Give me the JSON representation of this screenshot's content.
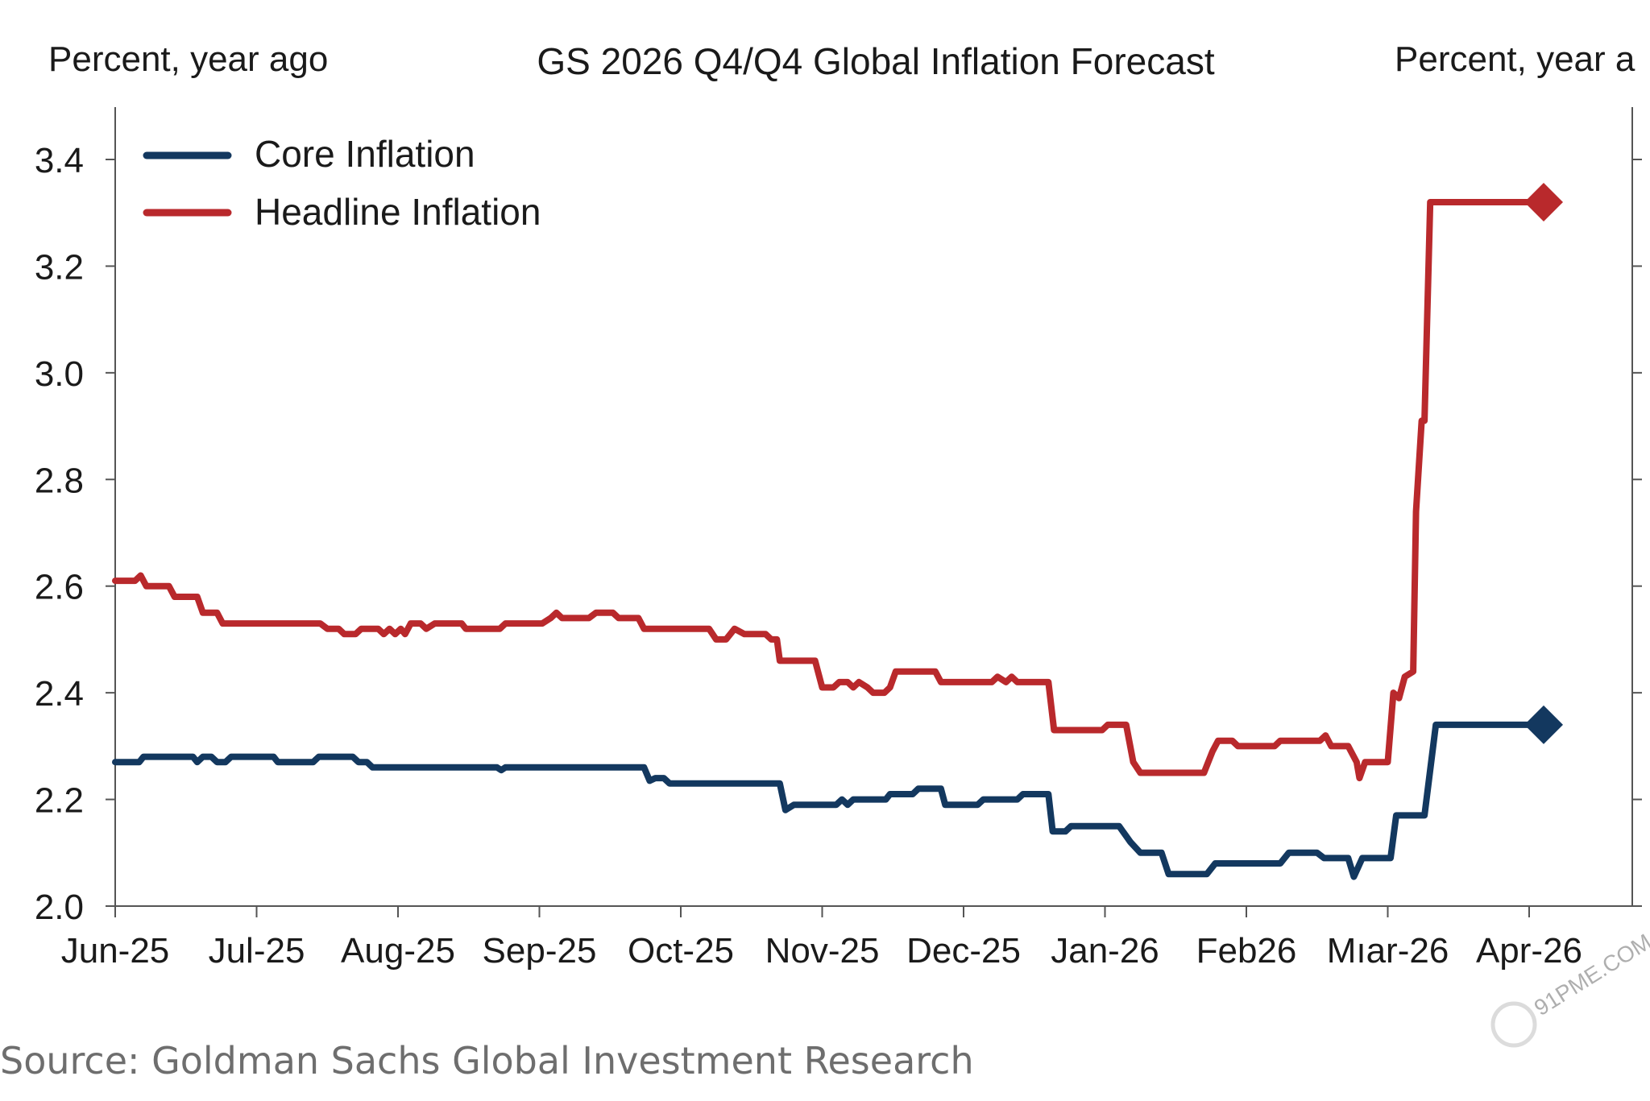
{
  "chart_data": {
    "type": "line",
    "title": "GS 2026 Q4/Q4 Global Inflation Forecast",
    "ylabel_left": "Percent, year ago",
    "ylabel_right": "Percent, year a",
    "ylim": [
      2.0,
      3.5
    ],
    "yticks": [
      2.0,
      2.2,
      2.4,
      2.6,
      2.8,
      3.0,
      3.2,
      3.4
    ],
    "ytick_labels": [
      "2.0",
      "2.2",
      "2.4",
      "2.6",
      "2.8",
      "3.0",
      "3.2",
      "3.4"
    ],
    "xlim": [
      0,
      11.0
    ],
    "x_categories": [
      "Jun-25",
      "Jul-25",
      "Aug-25",
      "Sep-25",
      "Oct-25",
      "Nov-25",
      "Dec-25",
      "Jan-26",
      "Feb26",
      "Mıar-26",
      "Apr-26"
    ],
    "legend_position": "top-left",
    "series": [
      {
        "name": "Core Inflation",
        "color": "#13385f",
        "end_marker": "diamond",
        "points": [
          [
            0.0,
            2.27
          ],
          [
            0.17,
            2.27
          ],
          [
            0.2,
            2.28
          ],
          [
            0.55,
            2.28
          ],
          [
            0.58,
            2.27
          ],
          [
            0.62,
            2.28
          ],
          [
            0.68,
            2.28
          ],
          [
            0.72,
            2.27
          ],
          [
            0.78,
            2.27
          ],
          [
            0.82,
            2.28
          ],
          [
            1.12,
            2.28
          ],
          [
            1.15,
            2.27
          ],
          [
            1.4,
            2.27
          ],
          [
            1.44,
            2.28
          ],
          [
            1.68,
            2.28
          ],
          [
            1.72,
            2.27
          ],
          [
            1.78,
            2.27
          ],
          [
            1.82,
            2.26
          ],
          [
            2.7,
            2.26
          ],
          [
            2.73,
            2.255
          ],
          [
            2.76,
            2.26
          ],
          [
            3.74,
            2.26
          ],
          [
            3.78,
            2.235
          ],
          [
            3.82,
            2.24
          ],
          [
            3.88,
            2.24
          ],
          [
            3.92,
            2.23
          ],
          [
            4.7,
            2.23
          ],
          [
            4.74,
            2.18
          ],
          [
            4.8,
            2.19
          ],
          [
            5.1,
            2.19
          ],
          [
            5.14,
            2.2
          ],
          [
            5.18,
            2.19
          ],
          [
            5.22,
            2.2
          ],
          [
            5.45,
            2.2
          ],
          [
            5.48,
            2.21
          ],
          [
            5.64,
            2.21
          ],
          [
            5.68,
            2.22
          ],
          [
            5.84,
            2.22
          ],
          [
            5.87,
            2.19
          ],
          [
            6.1,
            2.19
          ],
          [
            6.14,
            2.2
          ],
          [
            6.38,
            2.2
          ],
          [
            6.42,
            2.21
          ],
          [
            6.6,
            2.21
          ],
          [
            6.63,
            2.14
          ],
          [
            6.72,
            2.14
          ],
          [
            6.76,
            2.15
          ],
          [
            7.1,
            2.15
          ],
          [
            7.18,
            2.12
          ],
          [
            7.25,
            2.1
          ],
          [
            7.4,
            2.1
          ],
          [
            7.45,
            2.06
          ],
          [
            7.72,
            2.06
          ],
          [
            7.78,
            2.08
          ],
          [
            8.24,
            2.08
          ],
          [
            8.3,
            2.1
          ],
          [
            8.5,
            2.1
          ],
          [
            8.55,
            2.09
          ],
          [
            8.72,
            2.09
          ],
          [
            8.76,
            2.055
          ],
          [
            8.82,
            2.09
          ],
          [
            9.02,
            2.09
          ],
          [
            9.06,
            2.17
          ],
          [
            9.26,
            2.17
          ],
          [
            9.34,
            2.34
          ],
          [
            10.0,
            2.34
          ]
        ]
      },
      {
        "name": "Headline Inflation",
        "color": "#b9292c",
        "end_marker": "diamond",
        "points": [
          [
            0.0,
            2.61
          ],
          [
            0.14,
            2.61
          ],
          [
            0.18,
            2.62
          ],
          [
            0.22,
            2.6
          ],
          [
            0.38,
            2.6
          ],
          [
            0.42,
            2.58
          ],
          [
            0.58,
            2.58
          ],
          [
            0.62,
            2.55
          ],
          [
            0.72,
            2.55
          ],
          [
            0.76,
            2.53
          ],
          [
            1.45,
            2.53
          ],
          [
            1.5,
            2.52
          ],
          [
            1.58,
            2.52
          ],
          [
            1.62,
            2.51
          ],
          [
            1.7,
            2.51
          ],
          [
            1.74,
            2.52
          ],
          [
            1.86,
            2.52
          ],
          [
            1.9,
            2.51
          ],
          [
            1.94,
            2.52
          ],
          [
            1.98,
            2.51
          ],
          [
            2.02,
            2.52
          ],
          [
            2.05,
            2.51
          ],
          [
            2.09,
            2.53
          ],
          [
            2.16,
            2.53
          ],
          [
            2.2,
            2.52
          ],
          [
            2.26,
            2.53
          ],
          [
            2.45,
            2.53
          ],
          [
            2.48,
            2.52
          ],
          [
            2.72,
            2.52
          ],
          [
            2.76,
            2.53
          ],
          [
            3.02,
            2.53
          ],
          [
            3.08,
            2.54
          ],
          [
            3.12,
            2.55
          ],
          [
            3.16,
            2.54
          ],
          [
            3.35,
            2.54
          ],
          [
            3.4,
            2.55
          ],
          [
            3.52,
            2.55
          ],
          [
            3.56,
            2.54
          ],
          [
            3.7,
            2.54
          ],
          [
            3.74,
            2.52
          ],
          [
            4.2,
            2.52
          ],
          [
            4.25,
            2.5
          ],
          [
            4.32,
            2.5
          ],
          [
            4.38,
            2.52
          ],
          [
            4.45,
            2.51
          ],
          [
            4.6,
            2.51
          ],
          [
            4.64,
            2.5
          ],
          [
            4.68,
            2.5
          ],
          [
            4.7,
            2.46
          ],
          [
            4.95,
            2.46
          ],
          [
            5.0,
            2.41
          ],
          [
            5.08,
            2.41
          ],
          [
            5.12,
            2.42
          ],
          [
            5.18,
            2.42
          ],
          [
            5.22,
            2.41
          ],
          [
            5.26,
            2.42
          ],
          [
            5.32,
            2.41
          ],
          [
            5.36,
            2.4
          ],
          [
            5.44,
            2.4
          ],
          [
            5.48,
            2.41
          ],
          [
            5.52,
            2.44
          ],
          [
            5.8,
            2.44
          ],
          [
            5.84,
            2.42
          ],
          [
            6.2,
            2.42
          ],
          [
            6.24,
            2.43
          ],
          [
            6.3,
            2.42
          ],
          [
            6.34,
            2.43
          ],
          [
            6.38,
            2.42
          ],
          [
            6.6,
            2.42
          ],
          [
            6.64,
            2.33
          ],
          [
            6.98,
            2.33
          ],
          [
            7.02,
            2.34
          ],
          [
            7.15,
            2.34
          ],
          [
            7.2,
            2.27
          ],
          [
            7.25,
            2.25
          ],
          [
            7.7,
            2.25
          ],
          [
            7.76,
            2.29
          ],
          [
            7.8,
            2.31
          ],
          [
            7.9,
            2.31
          ],
          [
            7.94,
            2.3
          ],
          [
            8.2,
            2.3
          ],
          [
            8.24,
            2.31
          ],
          [
            8.52,
            2.31
          ],
          [
            8.56,
            2.32
          ],
          [
            8.6,
            2.3
          ],
          [
            8.72,
            2.3
          ],
          [
            8.78,
            2.27
          ],
          [
            8.8,
            2.24
          ],
          [
            8.84,
            2.27
          ],
          [
            9.0,
            2.27
          ],
          [
            9.04,
            2.4
          ],
          [
            9.08,
            2.39
          ],
          [
            9.12,
            2.43
          ],
          [
            9.18,
            2.44
          ],
          [
            9.2,
            2.74
          ],
          [
            9.24,
            2.91
          ],
          [
            9.26,
            2.91
          ],
          [
            9.3,
            3.32
          ],
          [
            10.0,
            3.32
          ]
        ]
      }
    ]
  },
  "source_note": "Source: Goldman Sachs Global Investment Research",
  "watermark": "91PME.COM"
}
